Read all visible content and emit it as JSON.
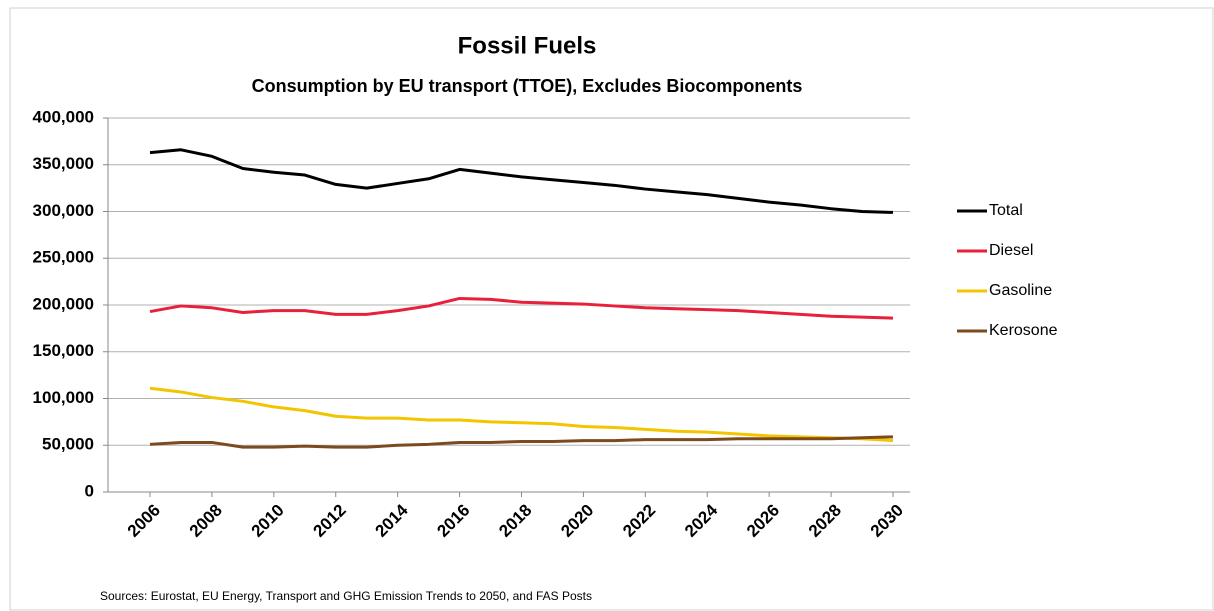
{
  "chart_data": {
    "type": "line",
    "title": "Fossil Fuels",
    "subtitle": "Consumption by EU transport (TTOE), Excludes Biocomponents",
    "source": "Sources: Eurostat, EU Energy, Transport and GHG Emission Trends to 2050, and FAS Posts",
    "x": [
      2006,
      2007,
      2008,
      2009,
      2010,
      2011,
      2012,
      2013,
      2014,
      2015,
      2016,
      2017,
      2018,
      2019,
      2020,
      2021,
      2022,
      2023,
      2024,
      2025,
      2026,
      2027,
      2028,
      2029,
      2030
    ],
    "xlim": [
      2006,
      2030
    ],
    "xticks": [
      2006,
      2008,
      2010,
      2012,
      2014,
      2016,
      2018,
      2020,
      2022,
      2024,
      2026,
      2028,
      2030
    ],
    "ylim": [
      0,
      400000
    ],
    "yticks": [
      0,
      {
        "value": 50000,
        "label": "50,000"
      },
      {
        "value": 100000,
        "label": "100,000"
      },
      {
        "value": 150000,
        "label": "150,000"
      },
      {
        "value": 200000,
        "label": "200,000"
      },
      {
        "value": 250000,
        "label": "250,000"
      },
      {
        "value": 300000,
        "label": "300,000"
      },
      {
        "value": 350000,
        "label": "350,000"
      },
      {
        "value": 400000,
        "label": "400,000"
      }
    ],
    "grid": true,
    "legend": "right",
    "series": [
      {
        "name": "Total",
        "color": "#000000",
        "values": [
          363000,
          366000,
          359000,
          346000,
          342000,
          339000,
          329000,
          325000,
          330000,
          335000,
          345000,
          341000,
          337000,
          334000,
          331000,
          328000,
          324000,
          321000,
          318000,
          314000,
          310000,
          307000,
          303000,
          300000,
          299000
        ]
      },
      {
        "name": "Diesel",
        "color": "#e8203a",
        "values": [
          193000,
          199000,
          197000,
          192000,
          194000,
          194000,
          190000,
          190000,
          194000,
          199000,
          207000,
          206000,
          203000,
          202000,
          201000,
          199000,
          197000,
          196000,
          195000,
          194000,
          192000,
          190000,
          188000,
          187000,
          186000
        ]
      },
      {
        "name": "Gasoline",
        "color": "#f2c500",
        "values": [
          111000,
          107000,
          101000,
          97000,
          91000,
          87000,
          81000,
          79000,
          79000,
          77000,
          77000,
          75000,
          74000,
          73000,
          70000,
          69000,
          67000,
          65000,
          64000,
          62000,
          60000,
          59000,
          58000,
          57000,
          55000
        ]
      },
      {
        "name": "Kerosone",
        "color": "#7b4a1e",
        "values": [
          51000,
          53000,
          53000,
          48000,
          48000,
          49000,
          48000,
          48000,
          50000,
          51000,
          53000,
          53000,
          54000,
          54000,
          55000,
          55000,
          56000,
          56000,
          56000,
          57000,
          57000,
          57000,
          57000,
          58000,
          59000
        ]
      }
    ]
  }
}
